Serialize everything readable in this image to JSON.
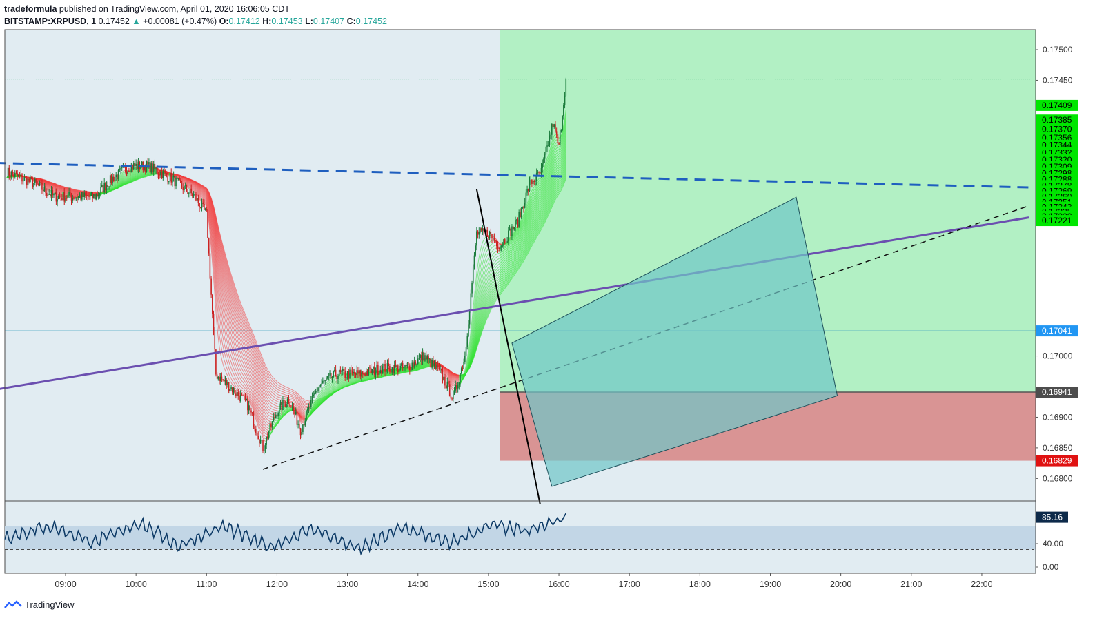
{
  "header": {
    "author": "tradeformula",
    "published_text": "published on TradingView.com, April 01, 2020 16:06:05 CDT",
    "symbol": "BITSTAMP:XRPUSD, 1",
    "last": "0.17452",
    "change_arrow": "▲",
    "change": "+0.00081 (+0.47%)",
    "o_label": "O:",
    "o_value": "0.17412",
    "h_label": "H:",
    "h_value": "0.17453",
    "l_label": "L:",
    "l_value": "0.17407",
    "c_label": "C:",
    "c_value": "0.17452"
  },
  "footer": {
    "brand": "TradingView"
  },
  "colors": {
    "background": "#e1ecf2",
    "long_profit": "#b2f0c4",
    "long_stop": "#d99494",
    "rsi_band": "#c2d6e6",
    "rsi_line": "#0d3a66",
    "ribbon_up": "#33e233",
    "ribbon_down": "#f23c3c",
    "candle_up": "#1a7a3a",
    "candle_down": "#cc2222",
    "dashed_trend": "#1f5fbf",
    "purple_trend": "#6b4fb0",
    "channel_box": "#6fc6c8"
  },
  "chart_data": {
    "type": "candlestick",
    "symbol": "BITSTAMP:XRPUSD",
    "interval": "1",
    "x_ticks": [
      "09:00",
      "10:00",
      "11:00",
      "12:00",
      "13:00",
      "14:00",
      "15:00",
      "16:00",
      "17:00",
      "18:00",
      "19:00",
      "20:00",
      "21:00",
      "22:00"
    ],
    "y_ticks": [
      "0.17500",
      "0.17450",
      "0.17000",
      "0.16900",
      "0.16850",
      "0.16800"
    ],
    "y_range": [
      0.1676,
      0.1753
    ],
    "last_price": 0.17452,
    "price_keypoints": [
      [
        "08:10",
        0.173
      ],
      [
        "08:35",
        0.1728
      ],
      [
        "08:50",
        0.1726
      ],
      [
        "09:10",
        0.1726
      ],
      [
        "09:25",
        0.1726
      ],
      [
        "09:40",
        0.1729
      ],
      [
        "09:55",
        0.1731
      ],
      [
        "10:10",
        0.1731
      ],
      [
        "10:30",
        0.1729
      ],
      [
        "10:50",
        0.1726
      ],
      [
        "11:00",
        0.1723
      ],
      [
        "11:08",
        0.1697
      ],
      [
        "11:20",
        0.1695
      ],
      [
        "11:35",
        0.1692
      ],
      [
        "11:48",
        0.1685
      ],
      [
        "12:00",
        0.1691
      ],
      [
        "12:10",
        0.1693
      ],
      [
        "12:20",
        0.1688
      ],
      [
        "12:35",
        0.1695
      ],
      [
        "12:50",
        0.1697
      ],
      [
        "13:10",
        0.1697
      ],
      [
        "13:30",
        0.1698
      ],
      [
        "13:50",
        0.1698
      ],
      [
        "14:05",
        0.17
      ],
      [
        "14:20",
        0.1697
      ],
      [
        "14:30",
        0.1693
      ],
      [
        "14:40",
        0.17
      ],
      [
        "14:50",
        0.172
      ],
      [
        "15:00",
        0.172
      ],
      [
        "15:10",
        0.1718
      ],
      [
        "15:25",
        0.1722
      ],
      [
        "15:35",
        0.1728
      ],
      [
        "15:45",
        0.173
      ],
      [
        "15:55",
        0.1738
      ],
      [
        "16:00",
        0.1734
      ],
      [
        "16:06",
        0.17452
      ]
    ],
    "price_axis_labels": [
      {
        "value": 0.17409,
        "text": "0.17409",
        "style": "green"
      },
      {
        "value": 0.17385,
        "text": "0.17385",
        "style": "green"
      },
      {
        "value": 0.1737,
        "text": "0.17370",
        "style": "green"
      },
      {
        "value": 0.17356,
        "text": "0.17356",
        "style": "green"
      },
      {
        "value": 0.17344,
        "text": "0.17344",
        "style": "green"
      },
      {
        "value": 0.17332,
        "text": "0.17332",
        "style": "green"
      },
      {
        "value": 0.1732,
        "text": "0.17320",
        "style": "green"
      },
      {
        "value": 0.17309,
        "text": "0.17309",
        "style": "green"
      },
      {
        "value": 0.17298,
        "text": "0.17298",
        "style": "green"
      },
      {
        "value": 0.17288,
        "text": "0.17288",
        "style": "green"
      },
      {
        "value": 0.17278,
        "text": "0.17278",
        "style": "green"
      },
      {
        "value": 0.17269,
        "text": "0.17269",
        "style": "green"
      },
      {
        "value": 0.1726,
        "text": "0.17260",
        "style": "green"
      },
      {
        "value": 0.17251,
        "text": "0.17251",
        "style": "green"
      },
      {
        "value": 0.17243,
        "text": "0.17243",
        "style": "green"
      },
      {
        "value": 0.17235,
        "text": "0.17235",
        "style": "green"
      },
      {
        "value": 0.17228,
        "text": "0.17228",
        "style": "green"
      },
      {
        "value": 0.17221,
        "text": "0.17221",
        "style": "green"
      },
      {
        "value": 0.17041,
        "text": "0.17041",
        "style": "blue"
      },
      {
        "value": 0.16941,
        "text": "0.16941",
        "style": "dark"
      },
      {
        "value": 0.16829,
        "text": "0.16829",
        "style": "red"
      }
    ],
    "horizontal_lines": [
      {
        "value": 0.17452,
        "style": "dotted-green"
      },
      {
        "value": 0.17041,
        "style": "solid-teal"
      }
    ],
    "long_position": {
      "start_time": "15:10",
      "end_time": "22:40",
      "entry": 0.16941,
      "target": 0.17525,
      "stop": 0.16829
    },
    "trendlines": [
      {
        "name": "dashed-blue",
        "style": "dashed",
        "points": [
          [
            "08:00",
            0.17315
          ],
          [
            "22:40",
            0.17275
          ]
        ]
      },
      {
        "name": "purple",
        "style": "solid",
        "points": [
          [
            "08:00",
            0.16945
          ],
          [
            "22:40",
            0.17226
          ]
        ]
      },
      {
        "name": "dashed-black",
        "style": "dashed",
        "points": [
          [
            "11:48",
            0.16815
          ],
          [
            "22:40",
            0.17245
          ]
        ]
      },
      {
        "name": "black-line",
        "style": "solid",
        "points": [
          [
            "14:50",
            0.17272
          ],
          [
            "15:44",
            0.16758
          ]
        ]
      }
    ],
    "channel_rect": {
      "points": [
        [
          "15:20",
          0.17021
        ],
        [
          "19:22",
          0.17259
        ],
        [
          "19:57",
          0.16935
        ],
        [
          "15:54",
          0.16787
        ]
      ]
    },
    "rsi": {
      "last": 85.16,
      "y_ticks": [
        "40.00",
        "0.00"
      ],
      "upper_level": 70,
      "lower_level": 30,
      "keypoints": [
        [
          0,
          50
        ],
        [
          0.08,
          70
        ],
        [
          0.16,
          42
        ],
        [
          0.24,
          76
        ],
        [
          0.31,
          36
        ],
        [
          0.39,
          70
        ],
        [
          0.47,
          34
        ],
        [
          0.55,
          66
        ],
        [
          0.63,
          30
        ],
        [
          0.71,
          68
        ],
        [
          0.79,
          40
        ],
        [
          0.87,
          72
        ],
        [
          0.93,
          60
        ],
        [
          1,
          85
        ]
      ]
    }
  }
}
